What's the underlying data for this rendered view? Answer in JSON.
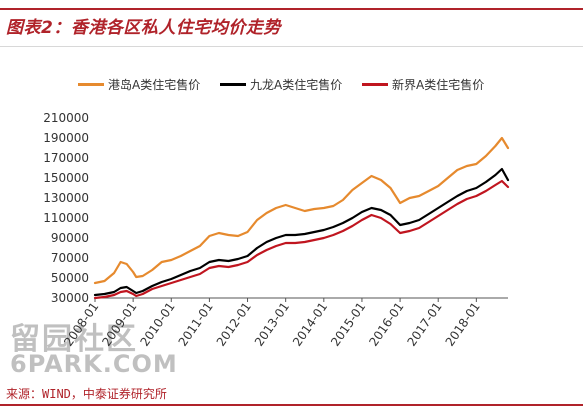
{
  "page": {
    "title": "图表2：香港各区私人住宅均价走势",
    "source": "来源：WIND，中泰证券研究所",
    "watermark_line1": "留园社区",
    "watermark_line2": "6PARK.COM"
  },
  "colors": {
    "accent": "#b0232a",
    "hk_island": "#e68a2e",
    "kowloon": "#000000",
    "new_territories": "#c0151f"
  },
  "chart_data": {
    "type": "line",
    "title": "香港各区私人住宅均价走势",
    "xlabel": "",
    "ylabel": "",
    "ylim": [
      30000,
      210000
    ],
    "yticks": [
      30000,
      50000,
      70000,
      90000,
      110000,
      130000,
      150000,
      170000,
      190000,
      210000
    ],
    "xlim": [
      2008.0,
      2018.83
    ],
    "xticks": [
      {
        "value": 2008.0,
        "label": "2008-01"
      },
      {
        "value": 2009.0,
        "label": "2009-01"
      },
      {
        "value": 2010.0,
        "label": "2010-01"
      },
      {
        "value": 2011.0,
        "label": "2011-01"
      },
      {
        "value": 2012.0,
        "label": "2012-01"
      },
      {
        "value": 2013.0,
        "label": "2013-01"
      },
      {
        "value": 2014.0,
        "label": "2014-01"
      },
      {
        "value": 2015.0,
        "label": "2015-01"
      },
      {
        "value": 2016.0,
        "label": "2016-01"
      },
      {
        "value": 2017.0,
        "label": "2017-01"
      },
      {
        "value": 2018.0,
        "label": "2018-01"
      }
    ],
    "legend_position": "top",
    "grid": false,
    "series": [
      {
        "name": "港岛A类住宅售价",
        "color": "#e68a2e",
        "x": [
          2008.0,
          2008.25,
          2008.5,
          2008.67,
          2008.83,
          2009.0,
          2009.08,
          2009.25,
          2009.5,
          2009.75,
          2010.0,
          2010.25,
          2010.5,
          2010.75,
          2011.0,
          2011.25,
          2011.5,
          2011.75,
          2012.0,
          2012.25,
          2012.5,
          2012.75,
          2013.0,
          2013.25,
          2013.5,
          2013.75,
          2014.0,
          2014.25,
          2014.5,
          2014.75,
          2015.0,
          2015.25,
          2015.5,
          2015.75,
          2016.0,
          2016.25,
          2016.5,
          2016.75,
          2017.0,
          2017.25,
          2017.5,
          2017.75,
          2018.0,
          2018.25,
          2018.5,
          2018.67,
          2018.83
        ],
        "y": [
          45000,
          47000,
          55000,
          66000,
          64000,
          56000,
          51000,
          52000,
          58000,
          66000,
          68000,
          72000,
          77000,
          82000,
          92000,
          95000,
          93000,
          92000,
          96000,
          108000,
          115000,
          120000,
          123000,
          120000,
          117000,
          119000,
          120000,
          122000,
          128000,
          138000,
          145000,
          152000,
          148000,
          140000,
          125000,
          130000,
          132000,
          137000,
          142000,
          150000,
          158000,
          162000,
          164000,
          172000,
          182000,
          190000,
          180000
        ]
      },
      {
        "name": "九龙A类住宅售价",
        "color": "#000000",
        "x": [
          2008.0,
          2008.25,
          2008.5,
          2008.67,
          2008.83,
          2009.0,
          2009.08,
          2009.25,
          2009.5,
          2009.75,
          2010.0,
          2010.25,
          2010.5,
          2010.75,
          2011.0,
          2011.25,
          2011.5,
          2011.75,
          2012.0,
          2012.25,
          2012.5,
          2012.75,
          2013.0,
          2013.25,
          2013.5,
          2013.75,
          2014.0,
          2014.25,
          2014.5,
          2014.75,
          2015.0,
          2015.25,
          2015.5,
          2015.75,
          2016.0,
          2016.25,
          2016.5,
          2016.75,
          2017.0,
          2017.25,
          2017.5,
          2017.75,
          2018.0,
          2018.25,
          2018.5,
          2018.67,
          2018.83
        ],
        "y": [
          33000,
          34000,
          36000,
          40000,
          41000,
          37000,
          35000,
          37000,
          42000,
          46000,
          49000,
          53000,
          57000,
          60000,
          66000,
          68000,
          67000,
          69000,
          72000,
          80000,
          86000,
          90000,
          93000,
          93000,
          94000,
          96000,
          98000,
          101000,
          105000,
          110000,
          116000,
          120000,
          118000,
          113000,
          103000,
          105000,
          108000,
          114000,
          120000,
          126000,
          132000,
          137000,
          140000,
          146000,
          153000,
          159000,
          148000
        ]
      },
      {
        "name": "新界A类住宅售价",
        "color": "#c0151f",
        "x": [
          2008.0,
          2008.25,
          2008.5,
          2008.67,
          2008.83,
          2009.0,
          2009.08,
          2009.25,
          2009.5,
          2009.75,
          2010.0,
          2010.25,
          2010.5,
          2010.75,
          2011.0,
          2011.25,
          2011.5,
          2011.75,
          2012.0,
          2012.25,
          2012.5,
          2012.75,
          2013.0,
          2013.25,
          2013.5,
          2013.75,
          2014.0,
          2014.25,
          2014.5,
          2014.75,
          2015.0,
          2015.25,
          2015.5,
          2015.75,
          2016.0,
          2016.25,
          2016.5,
          2016.75,
          2017.0,
          2017.25,
          2017.5,
          2017.75,
          2018.0,
          2018.25,
          2018.5,
          2018.67,
          2018.83
        ],
        "y": [
          30000,
          31000,
          33000,
          36000,
          37000,
          34000,
          32000,
          34000,
          39000,
          42000,
          45000,
          48000,
          51000,
          54000,
          60000,
          62000,
          61000,
          63000,
          66000,
          73000,
          78000,
          82000,
          85000,
          85000,
          86000,
          88000,
          90000,
          93000,
          97000,
          102000,
          108000,
          113000,
          110000,
          104000,
          95000,
          97000,
          100000,
          106000,
          112000,
          118000,
          124000,
          129000,
          132000,
          137000,
          143000,
          147000,
          141000
        ]
      }
    ]
  }
}
